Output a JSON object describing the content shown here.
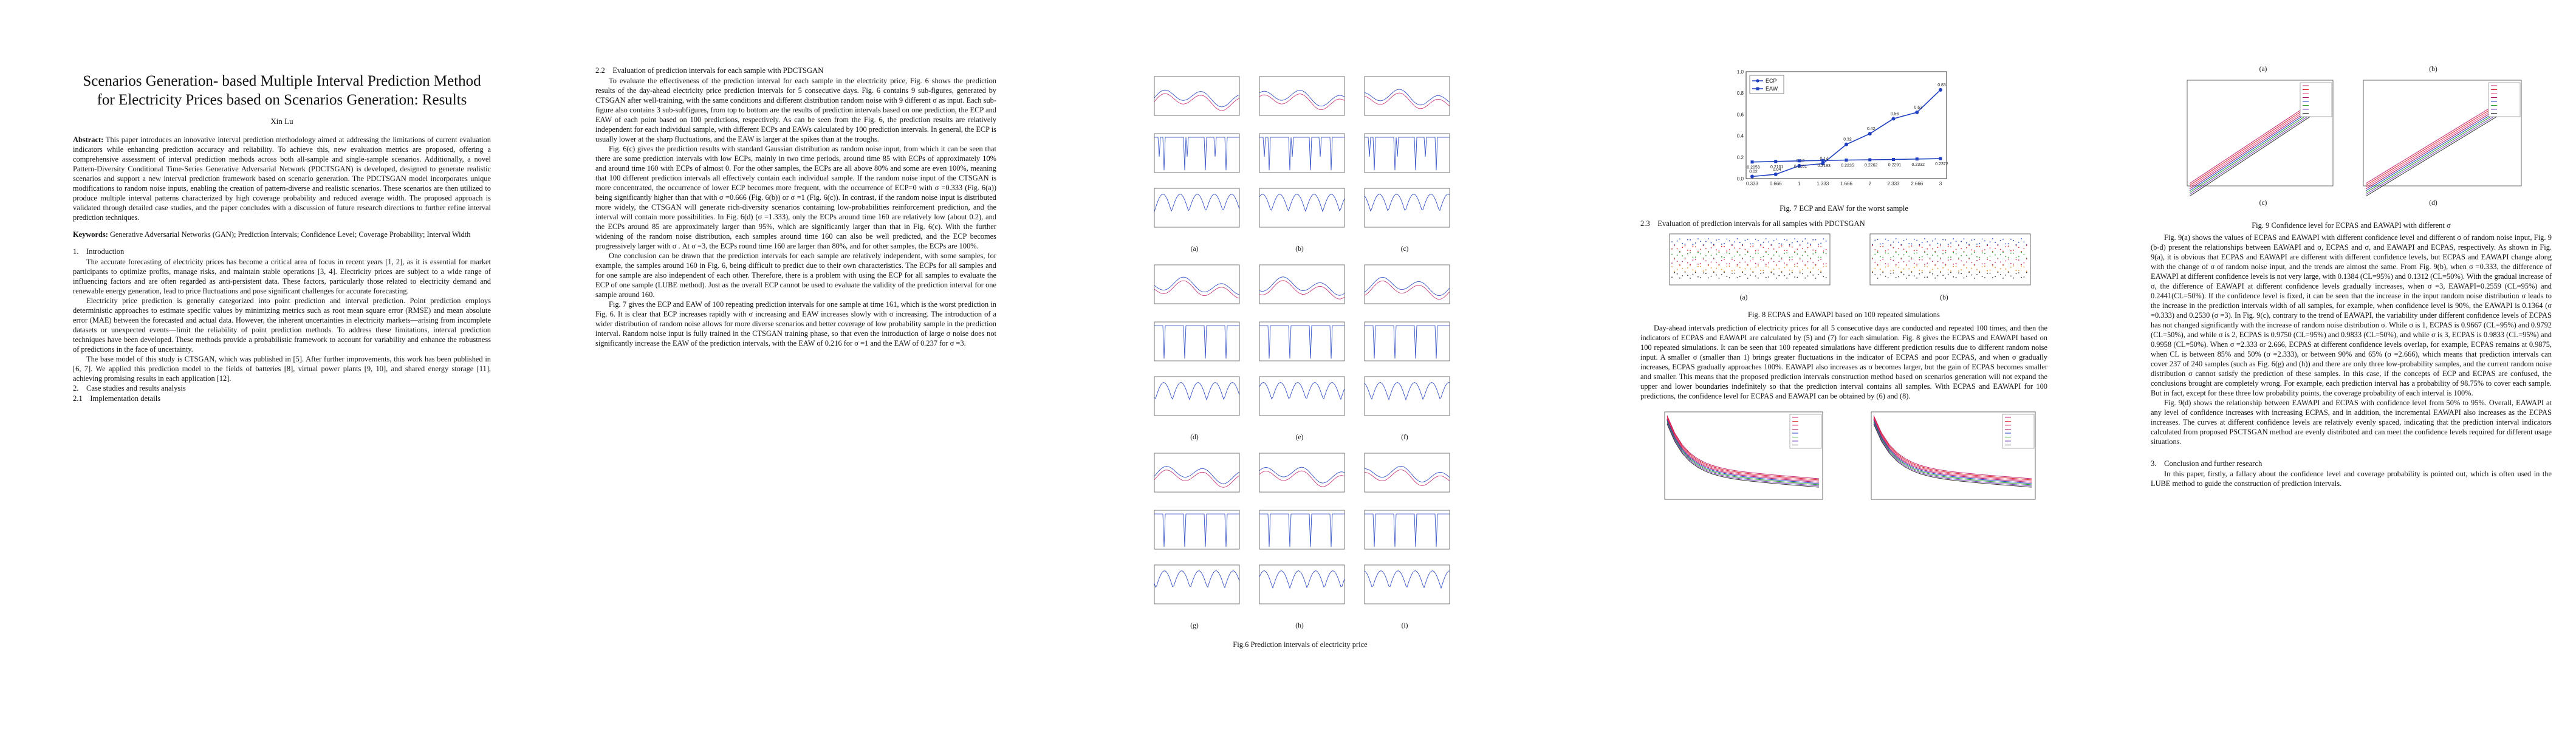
{
  "paper": {
    "title": "Scenarios Generation- based Multiple Interval Prediction Method for Electricity Prices based on Scenarios Generation: Results",
    "author": "Xin Lu",
    "abstract_label": "Abstract:",
    "abstract": "This paper introduces an innovative interval prediction methodology aimed at addressing the limitations of current evaluation indicators while enhancing prediction accuracy and reliability. To achieve this, new evaluation metrics are proposed, offering a comprehensive assessment of interval prediction methods across both all-sample and single-sample scenarios. Additionally, a novel Pattern-Diversity Conditional Time-Series Generative Adversarial Network (PDCTSGAN) is developed, designed to generate realistic scenarios and support a new interval prediction framework based on scenario generation. The PDCTSGAN model incorporates unique modifications to random noise inputs, enabling the creation of pattern-diverse and realistic scenarios. These scenarios are then utilized to produce multiple interval patterns characterized by high coverage probability and reduced average width. The proposed approach is validated through detailed case studies, and the paper concludes with a discussion of future research directions to further refine interval prediction techniques.",
    "keywords_label": "Keywords:",
    "keywords": "Generative Adversarial Networks (GAN); Prediction Intervals; Confidence Level; Coverage Probability; Interval Width",
    "s1_heading": "1. Introduction",
    "s1_p1": "The accurate forecasting of electricity prices has become a critical area of focus in recent years [1, 2], as it is essential for market participants to optimize profits, manage risks, and maintain stable operations [3, 4]. Electricity prices are subject to a wide range of influencing factors and are often regarded as anti-persistent data. These factors, particularly those related to electricity demand and renewable energy generation, lead to price fluctuations and pose significant challenges for accurate forecasting.",
    "s1_p2": "Electricity price prediction is generally categorized into point prediction and interval prediction. Point prediction employs deterministic approaches to estimate specific values by minimizing metrics such as root mean square error (RMSE) and mean absolute error (MAE) between the forecasted and actual data. However, the inherent uncertainties in electricity markets—arising from incomplete datasets or unexpected events—limit the reliability of point prediction methods. To address these limitations, interval prediction techniques have been developed. These methods provide a probabilistic framework to account for variability and enhance the robustness of predictions in the face of uncertainty.",
    "s1_p3": "The base model of this study is CTSGAN, which was published in [5]. After further improvements, this work has been published in [6, 7]. We applied this prediction model to the fields of batteries [8], virtual power plants [9, 10], and shared energy storage [11], achieving promising results in each application [12].",
    "s2_heading": "2. Case studies and results analysis",
    "s21_heading": "2.1 Implementation details",
    "s22_heading": "2.2 Evaluation of prediction intervals for each sample with PDCTSGAN",
    "s22_p1": "To evaluate the effectiveness of the prediction interval for each sample in the electricity price, Fig. 6 shows the prediction results of the day-ahead electricity price prediction intervals for 5 consecutive days. Fig. 6 contains 9 sub-figures, generated by CTSGAN after well-training, with the same conditions and different distribution random noise with 9 different σ as input. Each sub-figure also contains 3 sub-subfigures, from top to bottom are the results of prediction intervals based on one prediction, the ECP and EAW of each point based on 100 predictions, respectively. As can be seen from the Fig. 6, the prediction results are relatively independent for each individual sample, with different ECPs and EAWs calculated by 100 prediction intervals. In general, the ECP is usually lower at the sharp fluctuations, and the EAW is larger at the spikes than at the troughs.",
    "s22_p2": "Fig. 6(c) gives the prediction results with standard Gaussian distribution as random noise input, from which it can be seen that there are some prediction intervals with low ECPs, mainly in two time periods, around time 85 with ECPs of approximately 10% and around time 160 with ECPs of almost 0. For the other samples, the ECPs are all above 80% and some are even 100%, meaning that 100 different prediction intervals all effectively contain each individual sample. If the random noise input of the CTSGAN is more concentrated, the occurrence of lower ECP becomes more frequent, with the occurrence of ECP=0 with σ =0.333 (Fig. 6(a)) being significantly higher than that with σ =0.666 (Fig. 6(b)) or σ =1 (Fig. 6(c)). In contrast, if the random noise input is distributed more widely, the CTSGAN will generate rich-diversity scenarios containing low-probabilities reinforcement prediction, and the interval will contain more possibilities. In Fig. 6(d) (σ =1.333), only the ECPs around time 160 are relatively low (about 0.2), and the ECPs around 85 are approximately larger than 95%, which are significantly larger than that in Fig. 6(c). With the further widening of the random noise distribution, each samples around time 160 can also be well predicted, and the ECP becomes progressively larger with σ . At σ =3, the ECPs round time 160 are larger than 80%, and for other samples, the ECPs are 100%.",
    "s22_p3": "One conclusion can be drawn that the prediction intervals for each sample are relatively independent, with some samples, for example, the samples around 160 in Fig. 6, being difficult to predict due to their own characteristics. The ECPs for all samples and for one sample are also independent of each other. Therefore, there is a problem with using the ECP for all samples to evaluate the ECP of one sample (LUBE method). Just as the overall ECP cannot be used to evaluate the validity of the prediction interval for one sample around 160.",
    "s22_p4": "Fig. 7 gives the ECP and EAW of 100 repeating prediction intervals for one sample at time 161, which is the worst prediction in Fig. 6. It is clear that ECP increases rapidly with σ increasing and EAW increases slowly with σ increasing. The introduction of a wider distribution of random noise allows for more diverse scenarios and better coverage of low probability sample in the prediction interval. Random noise input is fully trained in the CTSGAN training phase, so that even the introduction of large σ noise does not significantly increase the EAW of the prediction intervals, with the EAW of 0.216 for σ =1 and the EAW of 0.237 for σ =3.",
    "fig6_caption": "Fig.6 Prediction intervals of electricity price",
    "fig6_labels": [
      "(a)",
      "(b)",
      "(c)",
      "(d)",
      "(e)",
      "(f)",
      "(g)",
      "(h)",
      "(i)"
    ],
    "fig7_caption": "Fig. 7 ECP and EAW for the worst sample",
    "s23_heading": "2.3 Evaluation of prediction intervals for all samples with PDCTSGAN",
    "fig8_caption": "Fig. 8 ECPAS and EAWAPI based on 100 repeated simulations",
    "fig8_labels": [
      "(a)",
      "(b)"
    ],
    "s23_p1": "Day-ahead intervals prediction of electricity prices for all 5 consecutive days are conducted and repeated 100 times, and then the indicators of ECPAS and EAWAPI are calculated by (5) and (7) for each simulation. Fig. 8 gives the ECPAS and EAWAPI based on 100 repeated simulations. It can be seen that 100 repeated simulations have different prediction results due to different random noise input. A smaller σ (smaller than 1) brings greater fluctuations in the indicator of ECPAS and poor ECPAS, and when σ gradually increases, ECPAS gradually approaches 100%. EAWAPI also increases as σ becomes larger, but the gain of ECPAS becomes smaller and smaller. This means that the proposed prediction intervals construction method based on scenarios generation will not expand the upper and lower boundaries indefinitely so that the prediction interval contains all samples. With ECPAS and EAWAPI for 100 predictions, the confidence level for ECPAS and EAWAPI can be obtained by (6) and (8).",
    "fig9_labels": [
      "(a)",
      "(b)",
      "(c)",
      "(d)"
    ],
    "fig9_caption": "Fig. 9 Confidence level for ECPAS and EAWAPI with different σ",
    "s3_p1": "Fig. 9(a) shows the values of ECPAS and EAWAPI with different confidence level and different σ of random noise input, Fig. 9 (b-d) present the relationships between EAWAPI and σ, ECPAS and σ, and EAWAPI and ECPAS, respectively. As shown in Fig. 9(a), it is obvious that ECPAS and EAWAPI are different with different confidence levels, but ECPAS and EAWAPI change along with the change of σ of random noise input, and the trends are almost the same. From Fig. 9(b), when σ =0.333, the difference of EAWAPI at different confidence levels is not very large, with 0.1384 (CL=95%) and 0.1312 (CL=50%). With the gradual increase of σ, the difference of EAWAPI at different confidence levels gradually increases, when σ =3, EAWAPI=0.2559 (CL=95%) and 0.2441(CL=50%). If the confidence level is fixed, it can be seen that the increase in the input random noise distribution σ leads to the increase in the prediction intervals width of all samples, for example, when confidence level is 90%, the EAWAPI is 0.1364 (σ =0.333) and 0.2530 (σ =3). In Fig. 9(c), contrary to the trend of EAWAPI, the variability under different confidence levels of ECPAS has not changed significantly with the increase of random noise distribution σ. While σ is 1, ECPAS is 0.9667 (CL=95%) and 0.9792 (CL=50%), and while σ is 2, ECPAS is 0.9750 (CL=95%) and 0.9833 (CL=50%), and while σ is 3, ECPAS is 0.9833 (CL=95%) and 0.9958 (CL=50%). When σ =2.333 or 2.666, ECPAS at different confidence levels overlap, for example, ECPAS remains at 0.9875, when CL is between 85% and 50% (σ =2.333), or between 90% and 65% (σ =2.666), which means that prediction intervals can cover 237 of 240 samples (such as Fig. 6(g) and (h)) and there are only three low-probability samples, and the current random noise distribution σ cannot satisfy the prediction of these samples. In this case, if the concepts of ECP and ECPAS are confused, the conclusions brought are completely wrong. For example, each prediction interval has a probability of 98.75% to cover each sample. But in fact, except for these three low probability points, the coverage probability of each interval is 100%.",
    "s3_p2": "Fig. 9(d) shows the relationship between EAWAPI and ECPAS with confidence level from 50% to 95%. Overall, EAWAPI at any level of confidence increases with increasing ECPAS, and in addition, the incremental EAWAPI also increases as the ECPAS increases. The curves at different confidence levels are relatively evenly spaced, indicating that the prediction interval indicators calculated from proposed PSCTSGAN method are evenly distributed and can meet the confidence levels required for different usage situations.",
    "s3_heading": "3. Conclusion and further research",
    "s3_p3": "In this paper, firstly, a fallacy about the confidence level and coverage probability is pointed out, which is often used in the LUBE method to guide the construction of prediction intervals."
  },
  "chart_data": [
    {
      "type": "line",
      "figure": "Fig. 7",
      "x": [
        "0.333",
        "0.666",
        "1",
        "1.333",
        "1.666",
        "2",
        "2.333",
        "2.666",
        "3"
      ],
      "series": [
        {
          "name": "ECP",
          "values": [
            0.02,
            0.04,
            0.12,
            0.14,
            0.32,
            0.42,
            0.56,
            0.62,
            0.83
          ],
          "color": "#1f3fbf"
        },
        {
          "name": "EAW",
          "values": [
            0.2053,
            0.2101,
            0.2161,
            0.2193,
            0.2235,
            0.2262,
            0.2291,
            0.2332,
            0.2372
          ],
          "color": "#1f3fbf"
        }
      ],
      "ecp_labels": [
        "0.02",
        "0.04",
        "0.12",
        "0.14",
        "0.32",
        "0.42",
        "0.56",
        "0.62",
        "0.83"
      ],
      "eaw_labels": [
        "0.2053",
        "0.2101",
        "0.2161",
        "0.2193",
        "0.2235",
        "0.2262",
        "0.2291",
        "0.2332",
        "0.2372"
      ],
      "ylim": [
        0,
        1
      ]
    }
  ],
  "colors": {
    "blue": "#1f3fbf",
    "red": "#d9252b",
    "magenta": "#c4246d",
    "grey": "#888888"
  }
}
